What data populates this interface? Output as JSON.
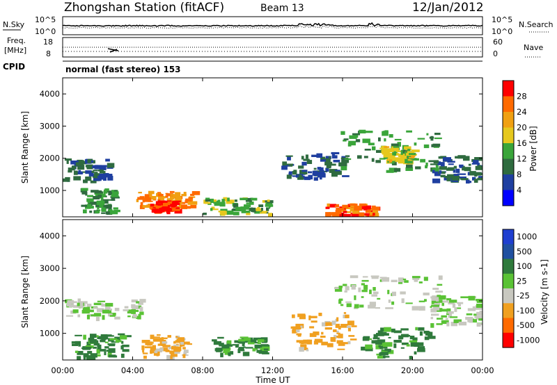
{
  "header": {
    "station": "Zhongshan Station (fitACF)",
    "beam": "Beam 13",
    "date": "12/Jan/2012"
  },
  "panels": {
    "nsky": {
      "label": "N.Sky",
      "ticks": [
        "10^5",
        "10^0"
      ]
    },
    "nsearch": {
      "label": "N.Search",
      "ticks": [
        "10^5",
        "10^0"
      ]
    },
    "freq": {
      "label_line1": "Freq.",
      "label_line2": "[MHz]",
      "ticks": [
        "18",
        "8"
      ]
    },
    "nave": {
      "label": "Nave",
      "ticks": [
        "60",
        "0"
      ]
    },
    "cpid": {
      "label": "CPID",
      "value": "normal (fast stereo) 153"
    }
  },
  "axes": {
    "y_label": "Slant Range [km]",
    "y_ticks": [
      "1000",
      "2000",
      "3000",
      "4000"
    ],
    "x_ticks": [
      "00:00",
      "04:00",
      "08:00",
      "12:00",
      "16:00",
      "20:00",
      "00:00"
    ],
    "x_label": "Time UT"
  },
  "power_scale": {
    "label": "Power [dB]",
    "ticks": [
      "4",
      "8",
      "12",
      "16",
      "20",
      "24",
      "28"
    ],
    "colors": [
      "#0000ff",
      "#1f3fa0",
      "#2f6b3f",
      "#3aa53a",
      "#e6c81e",
      "#f0a012",
      "#ff6a00",
      "#ff0000"
    ]
  },
  "velocity_scale": {
    "label": "Velocity [m s-1]",
    "ticks": [
      "1000",
      "500",
      "100",
      "25",
      "-25",
      "-100",
      "-500",
      "-1000"
    ],
    "colors": [
      "#1f3fd0",
      "#2050a0",
      "#2f7a3c",
      "#5ac235",
      "#c8c8c0",
      "#f0a020",
      "#ff6a00",
      "#ff0000"
    ]
  },
  "chart_data": [
    {
      "type": "heatmap",
      "title": "Power [dB]",
      "xlabel": "Time UT",
      "ylabel": "Slant Range [km]",
      "x_range": [
        "00:00",
        "24:00"
      ],
      "ylim": [
        180,
        4500
      ],
      "zlim": [
        0,
        30
      ],
      "regions": [
        {
          "t": [
            0.0,
            2.6
          ],
          "r": [
            1300,
            2000
          ],
          "z": 8
        },
        {
          "t": [
            1.0,
            3.0
          ],
          "r": [
            300,
            1100
          ],
          "z": 12
        },
        {
          "t": [
            4.2,
            7.5
          ],
          "r": [
            500,
            1000
          ],
          "z": 24
        },
        {
          "t": [
            5.0,
            6.5
          ],
          "r": [
            400,
            700
          ],
          "z": 28
        },
        {
          "t": [
            8.0,
            11.8
          ],
          "r": [
            300,
            800
          ],
          "z": 14
        },
        {
          "t": [
            12.5,
            16.0
          ],
          "r": [
            1400,
            2200
          ],
          "z": 8
        },
        {
          "t": [
            15.0,
            17.8
          ],
          "r": [
            200,
            600
          ],
          "z": 26
        },
        {
          "t": [
            15.8,
            21.5
          ],
          "r": [
            1600,
            2900
          ],
          "z": 12
        },
        {
          "t": [
            18.0,
            20.0
          ],
          "r": [
            1900,
            2400
          ],
          "z": 18
        },
        {
          "t": [
            21.0,
            24.0
          ],
          "r": [
            1300,
            2100
          ],
          "z": 8
        }
      ]
    },
    {
      "type": "heatmap",
      "title": "Velocity [m s-1]",
      "xlabel": "Time UT",
      "ylabel": "Slant Range [km]",
      "x_range": [
        "00:00",
        "24:00"
      ],
      "ylim": [
        180,
        4500
      ],
      "zlim": [
        -1000,
        1000
      ],
      "regions": [
        {
          "t": [
            0.0,
            4.5
          ],
          "r": [
            1500,
            2100
          ],
          "z": 0
        },
        {
          "t": [
            0.5,
            3.5
          ],
          "r": [
            300,
            1000
          ],
          "z": 100
        },
        {
          "t": [
            4.5,
            7.2
          ],
          "r": [
            300,
            1000
          ],
          "z": -100
        },
        {
          "t": [
            8.5,
            11.5
          ],
          "r": [
            400,
            900
          ],
          "z": 100
        },
        {
          "t": [
            13.0,
            16.5
          ],
          "r": [
            500,
            1700
          ],
          "z": -100
        },
        {
          "t": [
            15.5,
            21.5
          ],
          "r": [
            1800,
            2800
          ],
          "z": 0
        },
        {
          "t": [
            17.0,
            21.0
          ],
          "r": [
            300,
            1200
          ],
          "z": 100
        },
        {
          "t": [
            21.0,
            24.0
          ],
          "r": [
            1300,
            2200
          ],
          "z": 0
        }
      ]
    }
  ]
}
